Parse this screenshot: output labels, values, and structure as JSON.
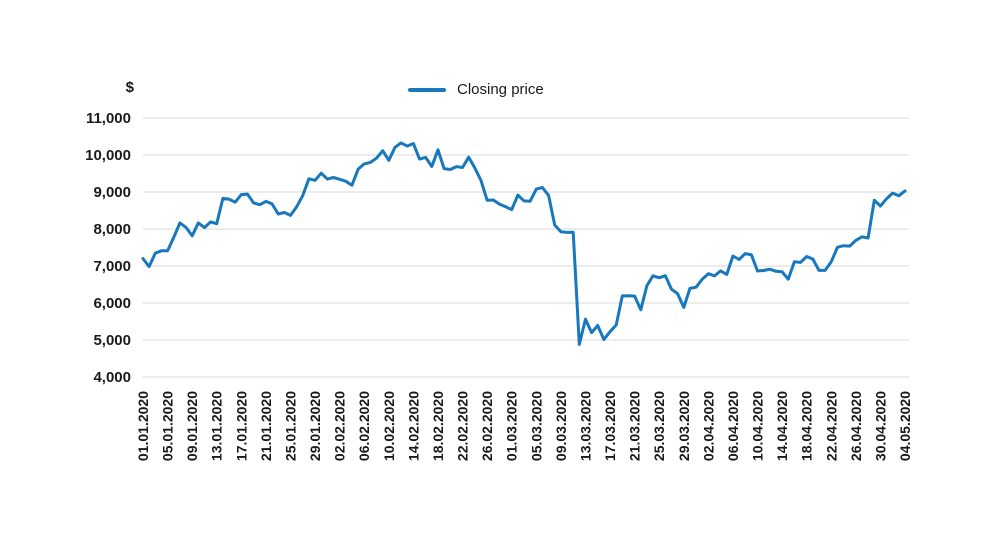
{
  "legend": {
    "label": "Closing price"
  },
  "chart_data": {
    "type": "line",
    "title": "",
    "xlabel": "",
    "ylabel": "$",
    "ylim": [
      4000,
      11000
    ],
    "ytick_step": 1000,
    "grid": true,
    "legend_position": "top-center",
    "line_color": "#1878be",
    "grid_color": "#d9d9d9",
    "text_color": "#1a1a1a",
    "ytick_labels": [
      "11,000",
      "10,000",
      "9,000",
      "8,000",
      "7,000",
      "6,000",
      "5,000",
      "4,000"
    ],
    "xtick_labels": [
      "01.01.2020",
      "05.01.2020",
      "09.01.2020",
      "13.01.2020",
      "17.01.2020",
      "21.01.2020",
      "25.01.2020",
      "29.01.2020",
      "02.02.2020",
      "06.02.2020",
      "10.02.2020",
      "14.02.2020",
      "18.02.2020",
      "22.02.2020",
      "26.02.2020",
      "01.03.2020",
      "05.03.2020",
      "09.03.2020",
      "13.03.2020",
      "17.03.2020",
      "21.03.2020",
      "25.03.2020",
      "29.03.2020",
      "02.04.2020",
      "06.04.2020",
      "10.04.2020",
      "14.04.2020",
      "18.04.2020",
      "22.04.2020",
      "26.04.2020",
      "30.04.2020",
      "04.05.2020"
    ],
    "x": [
      "01.01.2020",
      "02.01.2020",
      "03.01.2020",
      "04.01.2020",
      "05.01.2020",
      "06.01.2020",
      "07.01.2020",
      "08.01.2020",
      "09.01.2020",
      "10.01.2020",
      "11.01.2020",
      "12.01.2020",
      "13.01.2020",
      "14.01.2020",
      "15.01.2020",
      "16.01.2020",
      "17.01.2020",
      "18.01.2020",
      "19.01.2020",
      "20.01.2020",
      "21.01.2020",
      "22.01.2020",
      "23.01.2020",
      "24.01.2020",
      "25.01.2020",
      "26.01.2020",
      "27.01.2020",
      "28.01.2020",
      "29.01.2020",
      "30.01.2020",
      "31.01.2020",
      "01.02.2020",
      "02.02.2020",
      "03.02.2020",
      "04.02.2020",
      "05.02.2020",
      "06.02.2020",
      "07.02.2020",
      "08.02.2020",
      "09.02.2020",
      "10.02.2020",
      "11.02.2020",
      "12.02.2020",
      "13.02.2020",
      "14.02.2020",
      "15.02.2020",
      "16.02.2020",
      "17.02.2020",
      "18.02.2020",
      "19.02.2020",
      "20.02.2020",
      "21.02.2020",
      "22.02.2020",
      "23.02.2020",
      "24.02.2020",
      "25.02.2020",
      "26.02.2020",
      "27.02.2020",
      "28.02.2020",
      "29.02.2020",
      "01.03.2020",
      "02.03.2020",
      "03.03.2020",
      "04.03.2020",
      "05.03.2020",
      "06.03.2020",
      "07.03.2020",
      "08.03.2020",
      "09.03.2020",
      "10.03.2020",
      "11.03.2020",
      "12.03.2020",
      "13.03.2020",
      "14.03.2020",
      "15.03.2020",
      "16.03.2020",
      "17.03.2020",
      "18.03.2020",
      "19.03.2020",
      "20.03.2020",
      "21.03.2020",
      "22.03.2020",
      "23.03.2020",
      "24.03.2020",
      "25.03.2020",
      "26.03.2020",
      "27.03.2020",
      "28.03.2020",
      "29.03.2020",
      "30.03.2020",
      "31.03.2020",
      "01.04.2020",
      "02.04.2020",
      "03.04.2020",
      "04.04.2020",
      "05.04.2020",
      "06.04.2020",
      "07.04.2020",
      "08.04.2020",
      "09.04.2020",
      "10.04.2020",
      "11.04.2020",
      "12.04.2020",
      "13.04.2020",
      "14.04.2020",
      "15.04.2020",
      "16.04.2020",
      "17.04.2020",
      "18.04.2020",
      "19.04.2020",
      "20.04.2020",
      "21.04.2020",
      "22.04.2020",
      "23.04.2020",
      "24.04.2020",
      "25.04.2020",
      "26.04.2020",
      "27.04.2020",
      "28.04.2020",
      "29.04.2020",
      "30.04.2020",
      "01.05.2020",
      "02.05.2020",
      "03.05.2020",
      "04.05.2020"
    ],
    "series": [
      {
        "name": "Closing price",
        "color": "#1878be",
        "values": [
          7200,
          6985,
          7345,
          7410,
          7411,
          7769,
          8164,
          8044,
          7817,
          8166,
          8037,
          8192,
          8144,
          8827,
          8807,
          8723,
          8929,
          8942,
          8706,
          8657,
          8745,
          8680,
          8406,
          8445,
          8367,
          8596,
          8909,
          9358,
          9316,
          9508,
          9350,
          9392,
          9344,
          9293,
          9180,
          9613,
          9760,
          9800,
          9913,
          10116,
          9856,
          10208,
          10326,
          10240,
          10312,
          9889,
          9934,
          9690,
          10141,
          9633,
          9608,
          9686,
          9663,
          9941,
          9650,
          9310,
          8778,
          8784,
          8672,
          8599,
          8523,
          8915,
          8760,
          8750,
          9078,
          9122,
          8909,
          8108,
          7923,
          7909,
          7911,
          4880,
          5563,
          5200,
          5392,
          5014,
          5225,
          5406,
          6191,
          6198,
          6186,
          5816,
          6469,
          6734,
          6681,
          6738,
          6372,
          6251,
          5881,
          6394,
          6428,
          6642,
          6793,
          6733,
          6867,
          6772,
          7271,
          7176,
          7334,
          7302,
          6865,
          6878,
          6913,
          6857,
          6842,
          6642,
          7116,
          7096,
          7257,
          7189,
          6881,
          6880,
          7117,
          7505,
          7550,
          7539,
          7693,
          7789,
          7756,
          8778,
          8620,
          8820,
          8970,
          8900,
          9030
        ]
      }
    ]
  }
}
